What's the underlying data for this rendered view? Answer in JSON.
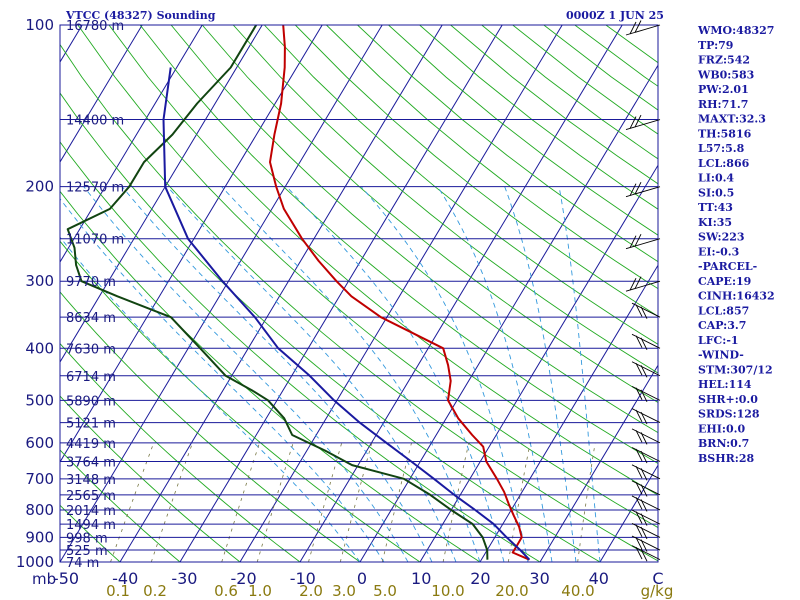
{
  "chart_data": {
    "type": "line",
    "title": "VTCC (48327) Sounding",
    "valid_time": "0000Z  1 JUN 25",
    "pressure_axis": {
      "scale": "log",
      "range": [
        1000,
        100
      ],
      "ticks": [
        "100",
        "200",
        "300",
        "400",
        "500",
        "600",
        "700",
        "800",
        "900",
        "1000"
      ],
      "unit_label": "mb"
    },
    "temperature_axis": {
      "range": [
        -50,
        50
      ],
      "ticks": [
        "-50",
        "-40",
        "-30",
        "-20",
        "-10",
        "0",
        "10",
        "20",
        "30",
        "40",
        "C"
      ],
      "skew": true
    },
    "isobars": [
      {
        "p": 100,
        "label": "16780 m"
      },
      {
        "p": 150,
        "label": "14400 m"
      },
      {
        "p": 200,
        "label": "12570 m"
      },
      {
        "p": 250,
        "label": "11070 m"
      },
      {
        "p": 300,
        "label": "9770 m"
      },
      {
        "p": 350,
        "label": "8634 m"
      },
      {
        "p": 400,
        "label": "7630 m"
      },
      {
        "p": 450,
        "label": "6714 m"
      },
      {
        "p": 500,
        "label": "5890 m"
      },
      {
        "p": 550,
        "label": "5121 m"
      },
      {
        "p": 600,
        "label": "4419 m"
      },
      {
        "p": 650,
        "label": "3764 m"
      },
      {
        "p": 700,
        "label": "3148 m"
      },
      {
        "p": 750,
        "label": "2565 m"
      },
      {
        "p": 800,
        "label": "2014 m"
      },
      {
        "p": 850,
        "label": "1494 m"
      },
      {
        "p": 900,
        "label": "998 m"
      },
      {
        "p": 950,
        "label": "525 m"
      },
      {
        "p": 1000,
        "label": "74 m"
      }
    ],
    "mixing_ratio_labels": [
      "0.1",
      "0.2",
      "0.6",
      "1.0",
      "2.0",
      "3.0",
      "5.0",
      "10.0",
      "20.0",
      "40.0",
      "g/kg"
    ],
    "mixing_ratio_values": [
      0.1,
      0.2,
      0.6,
      1.0,
      2.0,
      3.0,
      5.0,
      10.0,
      20.0,
      40.0
    ],
    "series": [
      {
        "color": "#c00000",
        "points": [
          [
            100,
            -66.5
          ],
          [
            110,
            -64
          ],
          [
            120,
            -62
          ],
          [
            140,
            -59
          ],
          [
            160,
            -57
          ],
          [
            180,
            -55
          ],
          [
            200,
            -51.5
          ],
          [
            220,
            -48
          ],
          [
            250,
            -42
          ],
          [
            275,
            -37
          ],
          [
            300,
            -32
          ],
          [
            320,
            -28
          ],
          [
            350,
            -21
          ],
          [
            375,
            -14
          ],
          [
            400,
            -7.5
          ],
          [
            430,
            -5
          ],
          [
            460,
            -3
          ],
          [
            500,
            -1.5
          ],
          [
            540,
            2
          ],
          [
            580,
            6
          ],
          [
            610,
            9
          ],
          [
            650,
            11
          ],
          [
            700,
            14.5
          ],
          [
            740,
            17
          ],
          [
            780,
            19
          ],
          [
            820,
            21
          ],
          [
            860,
            23
          ],
          [
            900,
            24.5
          ],
          [
            930,
            24.5
          ],
          [
            960,
            24.5
          ],
          [
            990,
            28
          ]
        ]
      },
      {
        "color": "#114411",
        "points": [
          [
            100,
            -71
          ],
          [
            120,
            -71
          ],
          [
            140,
            -73
          ],
          [
            160,
            -74
          ],
          [
            180,
            -76
          ],
          [
            200,
            -76
          ],
          [
            220,
            -77
          ],
          [
            240,
            -82
          ],
          [
            260,
            -79
          ],
          [
            280,
            -77
          ],
          [
            300,
            -74.5
          ],
          [
            320,
            -67
          ],
          [
            350,
            -56
          ],
          [
            400,
            -48
          ],
          [
            450,
            -41
          ],
          [
            480,
            -35
          ],
          [
            500,
            -31.5
          ],
          [
            540,
            -27
          ],
          [
            580,
            -24
          ],
          [
            620,
            -17
          ],
          [
            660,
            -11
          ],
          [
            700,
            -1
          ],
          [
            750,
            5
          ],
          [
            800,
            10
          ],
          [
            850,
            15
          ],
          [
            900,
            18
          ],
          [
            950,
            20
          ],
          [
            990,
            21
          ]
        ]
      },
      {
        "color": "#1a1aa0",
        "points": [
          [
            120,
            -81
          ],
          [
            150,
            -77
          ],
          [
            200,
            -70
          ],
          [
            250,
            -61
          ],
          [
            300,
            -51
          ],
          [
            350,
            -42
          ],
          [
            400,
            -35
          ],
          [
            450,
            -27
          ],
          [
            500,
            -20.5
          ],
          [
            550,
            -14
          ],
          [
            600,
            -7.5
          ],
          [
            650,
            -1.5
          ],
          [
            700,
            4
          ],
          [
            750,
            9
          ],
          [
            800,
            14
          ],
          [
            850,
            18.5
          ],
          [
            900,
            22
          ],
          [
            950,
            25.5
          ],
          [
            990,
            28
          ]
        ]
      }
    ],
    "wind_barbs": [
      {
        "p": 100
      },
      {
        "p": 150
      },
      {
        "p": 200
      },
      {
        "p": 250
      },
      {
        "p": 300
      },
      {
        "p": 350
      },
      {
        "p": 400
      },
      {
        "p": 450
      },
      {
        "p": 500
      },
      {
        "p": 550
      },
      {
        "p": 600
      },
      {
        "p": 650
      },
      {
        "p": 700
      },
      {
        "p": 750
      },
      {
        "p": 800
      },
      {
        "p": 850
      },
      {
        "p": 900
      },
      {
        "p": 950
      },
      {
        "p": 990
      }
    ]
  },
  "indices": [
    "WMO:48327",
    "TP:79",
    "FRZ:542",
    "WB0:583",
    "PW:2.01",
    "RH:71.7",
    "MAXT:32.3",
    "TH:5816",
    "L57:5.8",
    "LCL:866",
    "LI:0.4",
    "SI:0.5",
    "TT:43",
    "KI:35",
    "SW:223",
    "EI:-0.3",
    "-PARCEL-",
    "CAPE:19",
    "CINH:16432",
    "LCL:857",
    "CAP:3.7",
    "LFC:-1",
    "-WIND-",
    "STM:307/12",
    "HEL:114",
    "SHR+:0.0",
    "SRDS:128",
    "EHI:0.0",
    "BRN:0.7",
    "BSHR:28"
  ],
  "colors": {
    "isobar": "#1a1a9a",
    "isotherm": "#1a1a9a",
    "dry_adiabat": "#22aa22",
    "moist_adiabat": "#3399dd",
    "mixing_ratio": "#777744",
    "temperature": "#c00000",
    "dewpoint": "#114411",
    "parcel": "#1a1aa0"
  }
}
